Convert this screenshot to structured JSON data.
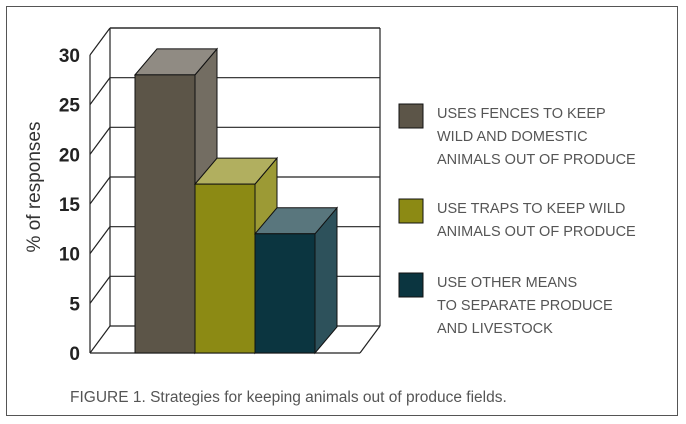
{
  "chart_data": {
    "type": "bar",
    "title": "",
    "ylabel": "% of responses",
    "xlabel": "",
    "ylim": [
      0,
      30
    ],
    "yticks": [
      0,
      5,
      10,
      15,
      20,
      25,
      30
    ],
    "grid": true,
    "legend_position": "right",
    "categories": [
      "USES FENCES TO KEEP WILD AND DOMESTIC ANIMALS OUT OF PRODUCE",
      "USE TRAPS TO KEEP WILD ANIMALS OUT OF PRODUCE",
      "USE OTHER MEANS TO SEPARATE PRODUCE AND LIVESTOCK"
    ],
    "values": [
      28,
      17,
      12
    ],
    "colors": [
      "#5c5548",
      "#8c8a14",
      "#0b3540"
    ],
    "legend": [
      {
        "lines": [
          "USES FENCES TO KEEP",
          "WILD AND DOMESTIC",
          "ANIMALS OUT OF PRODUCE"
        ],
        "color": "#5c5548"
      },
      {
        "lines": [
          "USE TRAPS TO KEEP WILD",
          "ANIMALS OUT OF PRODUCE"
        ],
        "color": "#8c8a14"
      },
      {
        "lines": [
          "USE OTHER MEANS",
          "TO SEPARATE PRODUCE",
          "AND LIVESTOCK"
        ],
        "color": "#0b3540"
      }
    ]
  },
  "caption": "FIGURE 1. Strategies for keeping animals out of produce fields."
}
